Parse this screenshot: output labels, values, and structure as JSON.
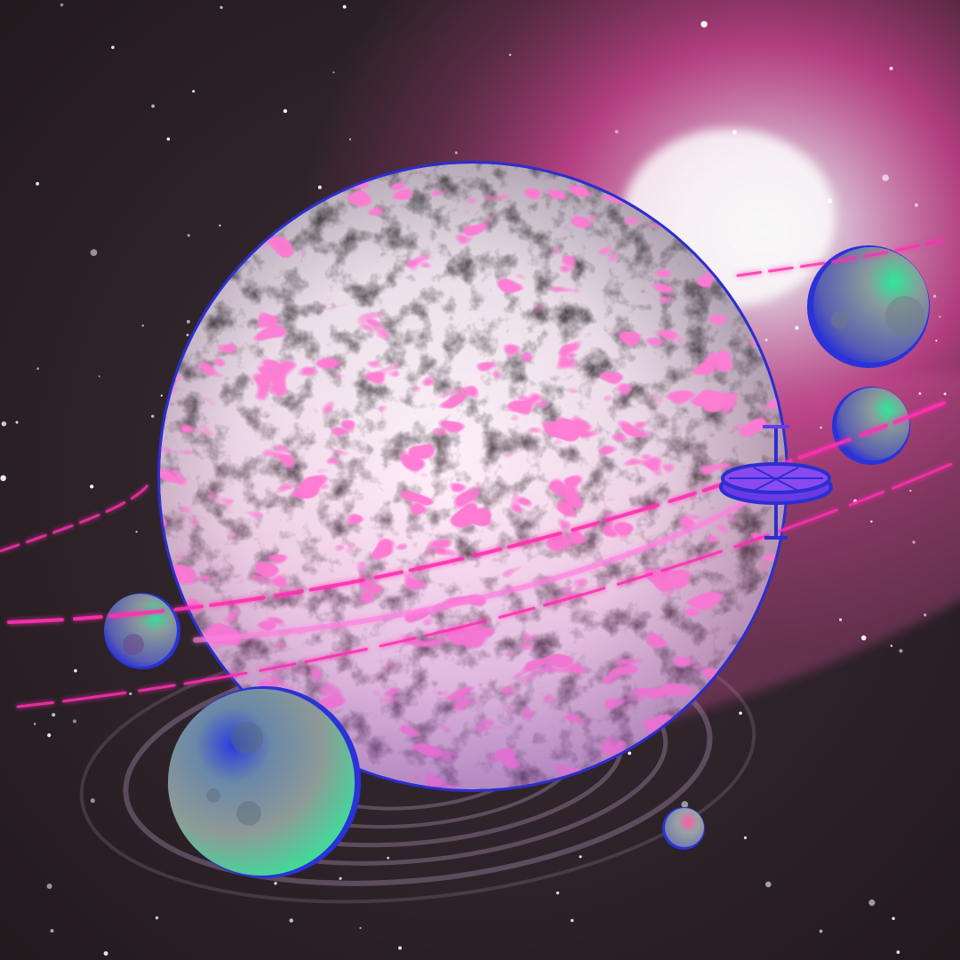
{
  "colors": {
    "space_dark": "#2b2226",
    "space_mid": "#3c2c35",
    "nebula_pink": "#ff4fb3",
    "nebula_glow": "#ffd6f4",
    "maze_pink": "#ff2fa6",
    "planet_rim": "#2b2fd0",
    "moon_green": "#2fe89a",
    "moon_grey": "#8a9595",
    "moon_blue": "#2a3be0",
    "station_blue": "#4a2fe0"
  },
  "objects": {
    "main_planet": "maze-textured-planet",
    "ring": "pink-energy-ring",
    "spiral": "galaxy-swirl",
    "station": "space-station",
    "moons": [
      "moon-large",
      "moon-upper-right",
      "moon-right",
      "moon-left",
      "moon-small"
    ]
  }
}
